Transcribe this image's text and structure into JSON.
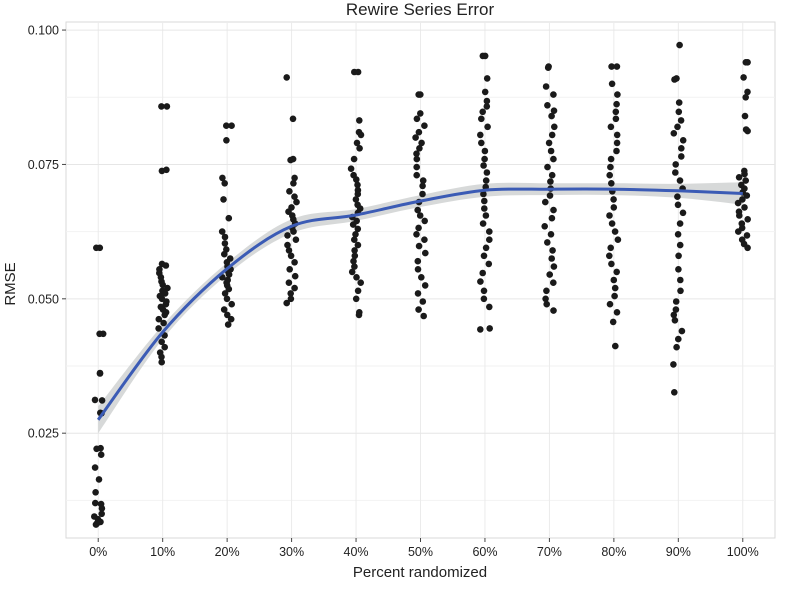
{
  "chart_data": {
    "type": "scatter",
    "title": "Rewire Series Error",
    "xlabel": "Percent randomized",
    "ylabel": "RMSE",
    "categories": [
      "0%",
      "10%",
      "20%",
      "30%",
      "40%",
      "50%",
      "60%",
      "70%",
      "80%",
      "90%",
      "100%"
    ],
    "y_ticks": [
      0.025,
      0.05,
      0.075,
      0.1
    ],
    "y_tick_labels": [
      "0.025",
      "0.050",
      "0.075",
      "0.100"
    ],
    "ylim": [
      0.0055,
      0.1015
    ],
    "grid": true,
    "legend": "none",
    "points_color": "#1a1a1a",
    "smooth_color": "#3b5bb5",
    "band_color": "#c9cccc",
    "series": [
      {
        "kind": "points",
        "groups": [
          [
            0.0595,
            0.0595,
            0.0435,
            0.0435,
            0.0362,
            0.0361,
            0.0312,
            0.0311,
            0.0288,
            0.0287,
            0.0222,
            0.0221,
            0.021,
            0.0186,
            0.0164,
            0.014,
            0.012,
            0.0118,
            0.011,
            0.01,
            0.0095,
            0.009,
            0.0085,
            0.0082,
            0.008
          ],
          [
            0.0858,
            0.0858,
            0.074,
            0.0738,
            0.0565,
            0.0562,
            0.0555,
            0.0548,
            0.054,
            0.0532,
            0.0526,
            0.052,
            0.0515,
            0.051,
            0.0505,
            0.05,
            0.0495,
            0.049,
            0.0485,
            0.048,
            0.0475,
            0.047,
            0.0462,
            0.0455,
            0.0445,
            0.0432,
            0.042,
            0.041,
            0.04,
            0.0392,
            0.0382
          ],
          [
            0.0822,
            0.0822,
            0.0795,
            0.0725,
            0.0715,
            0.0685,
            0.065,
            0.0625,
            0.0615,
            0.0603,
            0.0592,
            0.0583,
            0.0575,
            0.0568,
            0.056,
            0.0555,
            0.055,
            0.0545,
            0.054,
            0.0535,
            0.053,
            0.0525,
            0.0518,
            0.051,
            0.05,
            0.049,
            0.048,
            0.047,
            0.0462,
            0.0452
          ],
          [
            0.0912,
            0.0835,
            0.076,
            0.0758,
            0.0725,
            0.0715,
            0.07,
            0.069,
            0.068,
            0.067,
            0.0662,
            0.0655,
            0.0648,
            0.064,
            0.0632,
            0.0625,
            0.0618,
            0.061,
            0.06,
            0.059,
            0.058,
            0.0568,
            0.0555,
            0.0542,
            0.053,
            0.052,
            0.051,
            0.05,
            0.0492
          ],
          [
            0.0922,
            0.0922,
            0.0832,
            0.081,
            0.0805,
            0.079,
            0.078,
            0.076,
            0.0742,
            0.073,
            0.0722,
            0.0712,
            0.0702,
            0.0695,
            0.0685,
            0.0675,
            0.0668,
            0.066,
            0.0652,
            0.0645,
            0.0638,
            0.063,
            0.062,
            0.061,
            0.06,
            0.059,
            0.058,
            0.057,
            0.056,
            0.055,
            0.054,
            0.053,
            0.0515,
            0.05,
            0.0475,
            0.047
          ],
          [
            0.088,
            0.088,
            0.0845,
            0.0835,
            0.0822,
            0.081,
            0.08,
            0.079,
            0.078,
            0.077,
            0.076,
            0.0745,
            0.073,
            0.072,
            0.071,
            0.0695,
            0.068,
            0.0665,
            0.0655,
            0.0645,
            0.0632,
            0.062,
            0.061,
            0.0598,
            0.0585,
            0.057,
            0.0555,
            0.054,
            0.0525,
            0.051,
            0.0495,
            0.048,
            0.0468
          ],
          [
            0.0952,
            0.0952,
            0.091,
            0.0885,
            0.0868,
            0.0858,
            0.0848,
            0.0835,
            0.082,
            0.0805,
            0.079,
            0.0775,
            0.076,
            0.0748,
            0.0735,
            0.072,
            0.0708,
            0.0695,
            0.0682,
            0.0668,
            0.0655,
            0.064,
            0.0625,
            0.061,
            0.0595,
            0.058,
            0.0565,
            0.0548,
            0.0532,
            0.0515,
            0.05,
            0.0485,
            0.0445,
            0.0443
          ],
          [
            0.0932,
            0.093,
            0.0895,
            0.088,
            0.086,
            0.085,
            0.084,
            0.082,
            0.0805,
            0.079,
            0.0775,
            0.076,
            0.0745,
            0.073,
            0.0718,
            0.0705,
            0.0692,
            0.068,
            0.0665,
            0.065,
            0.0635,
            0.062,
            0.0605,
            0.059,
            0.0575,
            0.056,
            0.0545,
            0.053,
            0.0515,
            0.05,
            0.049,
            0.0478
          ],
          [
            0.0932,
            0.0932,
            0.09,
            0.088,
            0.0862,
            0.0848,
            0.0835,
            0.082,
            0.0805,
            0.079,
            0.0775,
            0.076,
            0.0745,
            0.073,
            0.0715,
            0.07,
            0.0685,
            0.067,
            0.0655,
            0.064,
            0.0625,
            0.061,
            0.0595,
            0.058,
            0.0565,
            0.055,
            0.0535,
            0.052,
            0.0505,
            0.049,
            0.0475,
            0.0457,
            0.0412
          ],
          [
            0.0972,
            0.091,
            0.0908,
            0.0865,
            0.0848,
            0.0832,
            0.082,
            0.0808,
            0.0795,
            0.078,
            0.0765,
            0.075,
            0.0735,
            0.072,
            0.0705,
            0.069,
            0.0675,
            0.066,
            0.064,
            0.062,
            0.06,
            0.058,
            0.0555,
            0.0535,
            0.0515,
            0.0495,
            0.048,
            0.047,
            0.046,
            0.044,
            0.0425,
            0.041,
            0.0378,
            0.0326
          ],
          [
            0.094,
            0.094,
            0.0912,
            0.0885,
            0.0875,
            0.084,
            0.0815,
            0.0812,
            0.0738,
            0.0732,
            0.0726,
            0.072,
            0.0712,
            0.0705,
            0.0698,
            0.0692,
            0.0685,
            0.0678,
            0.067,
            0.0662,
            0.0655,
            0.0648,
            0.064,
            0.0632,
            0.0625,
            0.0618,
            0.061,
            0.0602,
            0.0595
          ]
        ]
      },
      {
        "kind": "smooth",
        "x": [
          0,
          1,
          2,
          3,
          4,
          5,
          6,
          7,
          8,
          9,
          10
        ],
        "y": [
          0.0275,
          0.0438,
          0.0556,
          0.0635,
          0.0656,
          0.0682,
          0.0702,
          0.0704,
          0.0704,
          0.0701,
          0.0696
        ],
        "lower": [
          0.025,
          0.0425,
          0.0545,
          0.0622,
          0.0645,
          0.0671,
          0.069,
          0.0693,
          0.0693,
          0.0688,
          0.0675
        ],
        "upper": [
          0.03,
          0.0451,
          0.0567,
          0.0648,
          0.0667,
          0.0693,
          0.0714,
          0.0715,
          0.0715,
          0.0714,
          0.0717
        ]
      }
    ]
  }
}
